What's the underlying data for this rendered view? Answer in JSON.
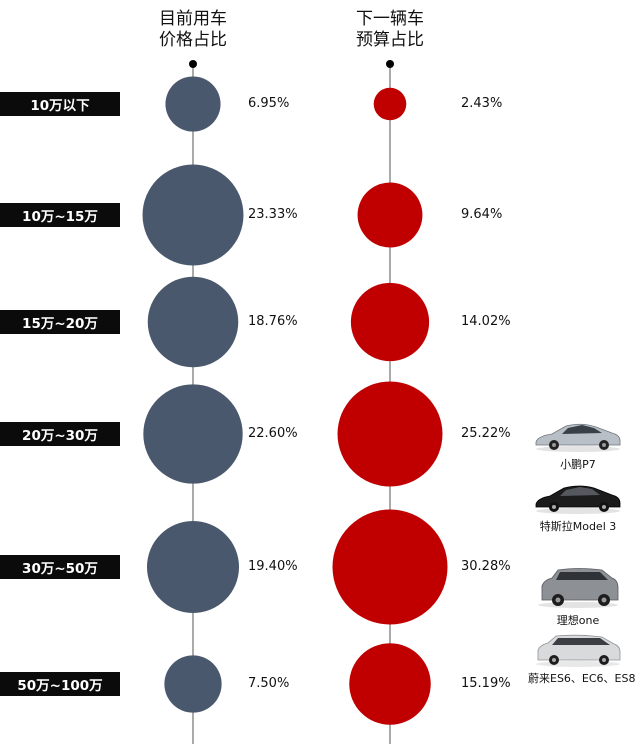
{
  "columns": {
    "current": {
      "line1": "目前用车",
      "line2": "价格占比"
    },
    "next": {
      "line1": "下一辆车",
      "line2": "预算占比"
    }
  },
  "chart_data": {
    "type": "bubble",
    "title": "",
    "categories": [
      "10万以下",
      "10万~15万",
      "15万~20万",
      "20万~30万",
      "30万~50万",
      "50万~100万"
    ],
    "series": [
      {
        "name": "目前用车价格占比",
        "color": "#4a586d",
        "values": [
          6.95,
          23.33,
          18.76,
          22.6,
          19.4,
          7.5
        ],
        "labels": [
          "6.95%",
          "23.33%",
          "18.76%",
          "22.60%",
          "19.40%",
          "7.50%"
        ]
      },
      {
        "name": "下一辆车预算占比",
        "color": "#c00000",
        "values": [
          2.43,
          9.64,
          14.02,
          25.22,
          30.28,
          15.19
        ],
        "labels": [
          "2.43%",
          "9.64%",
          "14.02%",
          "25.22%",
          "30.28%",
          "15.19%"
        ]
      }
    ]
  },
  "cars": [
    {
      "label": "小鹏P7",
      "color": "#b9bfc6"
    },
    {
      "label": "特斯拉Model 3",
      "color": "#1c1c1c"
    },
    {
      "label": "理想one",
      "color": "#8d9196"
    },
    {
      "label": "蔚来ES6、EC6、ES8",
      "color": "#d9dadc"
    }
  ]
}
